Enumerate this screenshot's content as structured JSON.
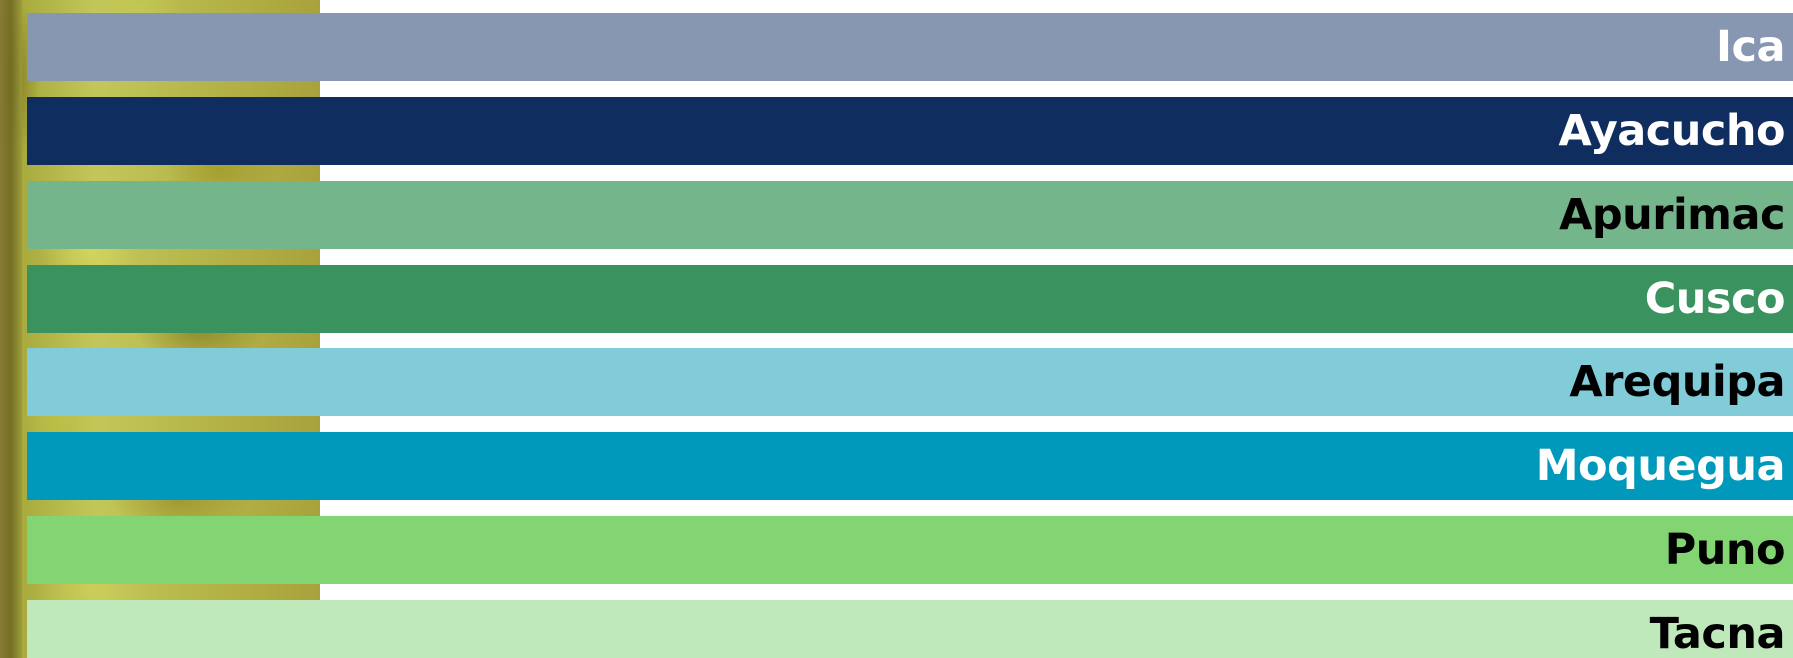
{
  "regions": [
    {
      "label": "Ica",
      "color": "#8796b1",
      "text_color": "#ffffff"
    },
    {
      "label": "Ayacucho",
      "color": "#102d5f",
      "text_color": "#ffffff"
    },
    {
      "label": "Apurimac",
      "color": "#74b58c",
      "text_color": "#000000"
    },
    {
      "label": "Cusco",
      "color": "#3a925f",
      "text_color": "#ffffff"
    },
    {
      "label": "Arequipa",
      "color": "#82ccda",
      "text_color": "#000000"
    },
    {
      "label": "Moquegua",
      "color": "#0099bb",
      "text_color": "#ffffff"
    },
    {
      "label": "Puno",
      "color": "#83d574",
      "text_color": "#000000"
    },
    {
      "label": "Tacna",
      "color": "#bfe8bb",
      "text_color": "#000000"
    }
  ]
}
